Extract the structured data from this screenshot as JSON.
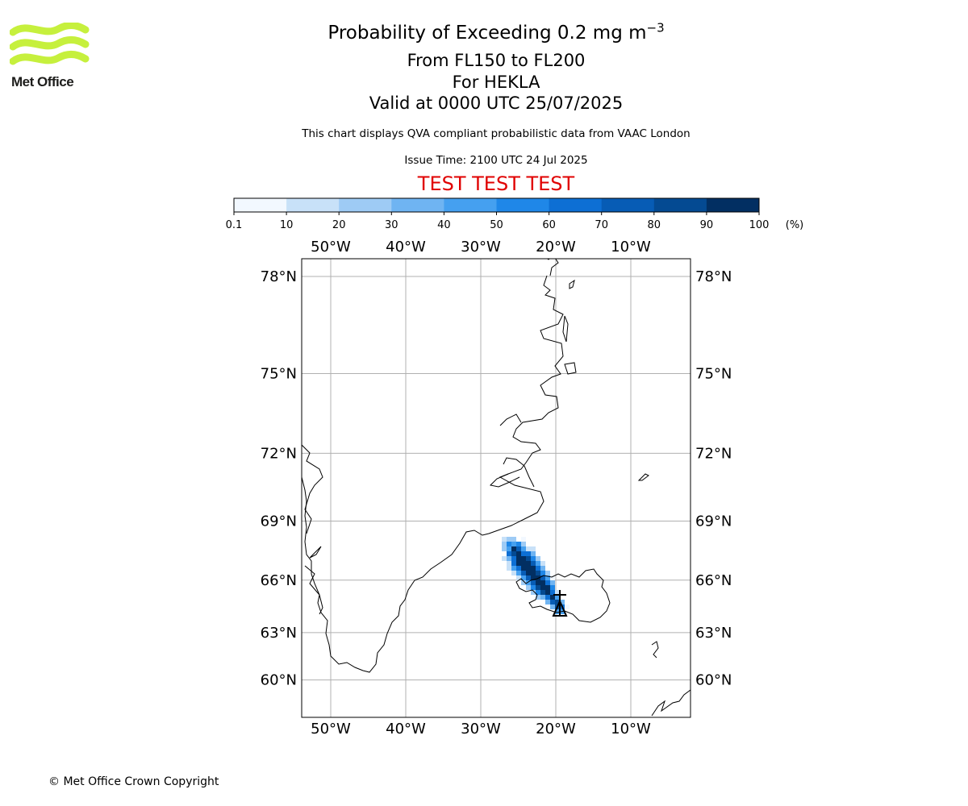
{
  "branding": {
    "logo_text": "Met Office",
    "logo_color": "#c6f03d"
  },
  "titles": {
    "main": "Probability of Exceeding 0.2 mg m",
    "main_superscript": "−3",
    "levels": "From FL150 to FL200",
    "volcano": "For HEKLA",
    "valid": "Valid at 0000 UTC 25/07/2025",
    "disclaimer": "This chart displays QVA compliant probabilistic data from VAAC London",
    "issue_time": "Issue Time: 2100 UTC 24 Jul 2025",
    "test_banner": "TEST TEST TEST",
    "test_color": "#e00000"
  },
  "colorbar": {
    "unit": "(%)",
    "ticks": [
      "0.1",
      "10",
      "20",
      "30",
      "40",
      "50",
      "60",
      "70",
      "80",
      "90",
      "100"
    ],
    "colors": [
      "#f2f8ff",
      "#c8e1f8",
      "#9ecbf5",
      "#6fb4f2",
      "#45a0f0",
      "#1f87e8",
      "#0d6fd4",
      "#075cb5",
      "#044a92",
      "#022f62"
    ]
  },
  "map": {
    "lon_labels": [
      "50°W",
      "40°W",
      "30°W",
      "20°W",
      "10°W"
    ],
    "lat_labels": [
      "78°N",
      "75°N",
      "72°N",
      "69°N",
      "66°N",
      "63°N",
      "60°N"
    ],
    "lon_values": [
      -50,
      -40,
      -30,
      -20,
      -10
    ],
    "lat_values": [
      78,
      75,
      72,
      69,
      66,
      63,
      60
    ],
    "gridline_color": "#b0b0b0",
    "volcano_symbol": "volcano-triangle"
  },
  "footer": {
    "copyright": "© Met Office Crown Copyright"
  }
}
